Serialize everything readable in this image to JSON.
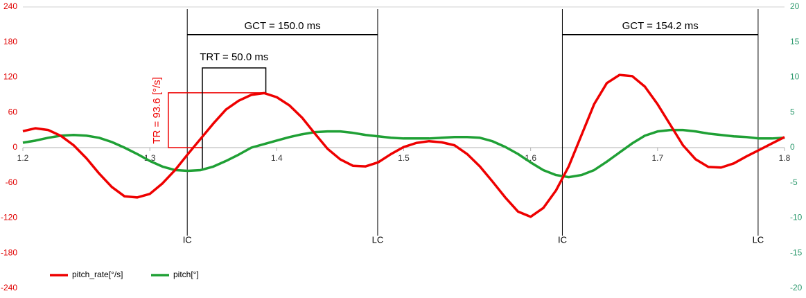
{
  "chart_data": {
    "type": "line",
    "x": [
      1.2,
      1.21,
      1.22,
      1.23,
      1.24,
      1.25,
      1.26,
      1.27,
      1.28,
      1.29,
      1.3,
      1.31,
      1.32,
      1.33,
      1.34,
      1.35,
      1.36,
      1.37,
      1.38,
      1.39,
      1.4,
      1.41,
      1.42,
      1.43,
      1.44,
      1.45,
      1.46,
      1.47,
      1.48,
      1.49,
      1.5,
      1.51,
      1.52,
      1.53,
      1.54,
      1.55,
      1.56,
      1.57,
      1.58,
      1.59,
      1.6,
      1.61,
      1.62,
      1.63,
      1.64,
      1.65,
      1.66,
      1.67,
      1.68,
      1.69,
      1.7,
      1.71,
      1.72,
      1.73,
      1.74,
      1.75,
      1.76,
      1.77,
      1.78,
      1.79,
      1.8
    ],
    "series": [
      {
        "name": "pitch_rate[°/s]",
        "color": "#ee0000",
        "values": [
          28,
          33,
          30,
          20,
          4,
          -18,
          -44,
          -67,
          -83,
          -85,
          -79,
          -61,
          -38,
          -11,
          15,
          41,
          65,
          80,
          90,
          93,
          86,
          72,
          51,
          24,
          -2,
          -20,
          -31,
          -32,
          -25,
          -11,
          1,
          8,
          11,
          9,
          4,
          -11,
          -32,
          -58,
          -85,
          -109,
          -118,
          -103,
          -73,
          -32,
          21,
          74,
          110,
          124,
          122,
          104,
          74,
          39,
          4,
          -20,
          -33,
          -34,
          -27,
          -15,
          -4,
          7,
          18
        ]
      },
      {
        "name": "pitch[°]",
        "color": "#1fa035",
        "axis": "y2",
        "values": [
          0.7,
          1.0,
          1.4,
          1.7,
          1.8,
          1.7,
          1.4,
          0.8,
          0,
          -0.9,
          -1.9,
          -2.7,
          -3.2,
          -3.3,
          -3.2,
          -2.7,
          -1.9,
          -1.0,
          0,
          0.5,
          1.0,
          1.5,
          1.9,
          2.2,
          2.3,
          2.3,
          2.1,
          1.8,
          1.6,
          1.4,
          1.3,
          1.3,
          1.3,
          1.4,
          1.5,
          1.5,
          1.4,
          0.9,
          0.1,
          -0.9,
          -2.1,
          -3.2,
          -3.9,
          -4.2,
          -3.9,
          -3.2,
          -2.0,
          -0.7,
          0.6,
          1.7,
          2.3,
          2.5,
          2.5,
          2.3,
          2.0,
          1.8,
          1.6,
          1.5,
          1.3,
          1.3,
          1.4
        ]
      }
    ],
    "xlim": [
      1.2,
      1.8
    ],
    "xticks": [
      1.2,
      1.3,
      1.4,
      1.5,
      1.6,
      1.7,
      1.8
    ],
    "ylim": [
      -240,
      240
    ],
    "yticks": [
      240,
      180,
      120,
      60,
      0,
      -60,
      -120,
      -180,
      -240
    ],
    "y2lim": [
      -20,
      20
    ],
    "y2ticks": [
      20,
      15,
      10,
      5,
      0,
      -5,
      -10,
      -15,
      -20
    ],
    "legend": "bottom-left",
    "events": [
      {
        "x": 1.3295,
        "label": "IC"
      },
      {
        "x": 1.4795,
        "label": "LC"
      },
      {
        "x": 1.625,
        "label": "IC"
      },
      {
        "x": 1.7792,
        "label": "LC"
      }
    ],
    "gct": [
      {
        "x0": 1.3295,
        "x1": 1.4795,
        "label": "GCT = 150.0 ms"
      },
      {
        "x0": 1.625,
        "x1": 1.7792,
        "label": "GCT = 154.2 ms"
      }
    ],
    "trt": {
      "x0": 1.3414,
      "x1": 1.3914,
      "label": "TRT = 50.0 ms"
    },
    "tr": {
      "x0": 1.3146,
      "value": 93.6,
      "label": "TR = 93.6 [°/s]"
    }
  }
}
